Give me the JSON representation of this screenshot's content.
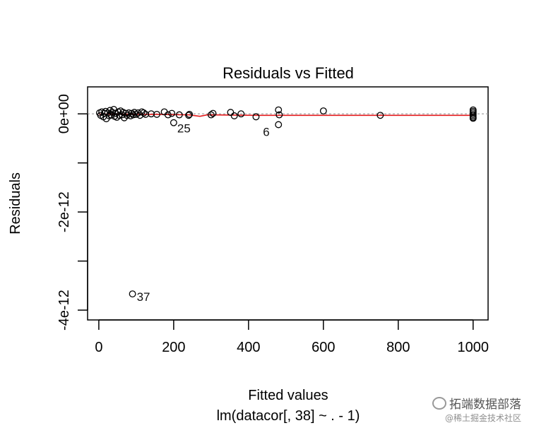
{
  "chart_data": {
    "type": "scatter",
    "title": "Residuals vs Fitted",
    "xlabel": "Fitted values",
    "sublabel": "lm(datacor[, 38] ~ . - 1)",
    "ylabel": "Residuals",
    "xlim": [
      -30,
      1040
    ],
    "ylim": [
      -4.2e-12,
      5.5e-13
    ],
    "x_ticks": [
      0,
      200,
      400,
      600,
      800,
      1000
    ],
    "x_tick_labels": [
      "0",
      "200",
      "400",
      "600",
      "800",
      "1000"
    ],
    "y_ticks": [
      0,
      -1e-12,
      -2e-12,
      -3e-12,
      -4e-12
    ],
    "y_tick_labels": [
      "0e+00",
      "",
      "-2e-12",
      "",
      "-4e-12"
    ],
    "points": [
      [
        2,
        2e-14
      ],
      [
        5,
        -3e-14
      ],
      [
        8,
        4e-14
      ],
      [
        12,
        -6e-14
      ],
      [
        15,
        1e-14
      ],
      [
        18,
        5e-14
      ],
      [
        20,
        -1e-13
      ],
      [
        24,
        2e-14
      ],
      [
        28,
        -4e-14
      ],
      [
        30,
        7e-14
      ],
      [
        33,
        -2e-14
      ],
      [
        36,
        3e-14
      ],
      [
        40,
        9e-14
      ],
      [
        42,
        -5e-14
      ],
      [
        45,
        1e-14
      ],
      [
        48,
        -7e-14
      ],
      [
        52,
        4e-14
      ],
      [
        55,
        -3e-14
      ],
      [
        58,
        6e-14
      ],
      [
        62,
        -2e-14
      ],
      [
        65,
        3e-14
      ],
      [
        68,
        -8e-14
      ],
      [
        72,
        1e-14
      ],
      [
        75,
        -3e-14
      ],
      [
        80,
        2e-14
      ],
      [
        85,
        -4e-14
      ],
      [
        88,
        1e-14
      ],
      [
        92,
        -2e-14
      ],
      [
        95,
        3e-14
      ],
      [
        100,
        -1e-14
      ],
      [
        105,
        2e-14
      ],
      [
        110,
        -3e-14
      ],
      [
        115,
        4e-14
      ],
      [
        120,
        2e-14
      ],
      [
        125,
        -1e-14
      ],
      [
        140,
        0.0
      ],
      [
        155,
        -1e-14
      ],
      [
        175,
        4e-14
      ],
      [
        185,
        -2e-14
      ],
      [
        195,
        1e-14
      ],
      [
        200,
        -1.8e-13
      ],
      [
        215,
        -2e-14
      ],
      [
        240,
        -3e-14
      ],
      [
        242,
        -1e-14
      ],
      [
        300,
        -2e-14
      ],
      [
        305,
        1e-14
      ],
      [
        352,
        3e-14
      ],
      [
        362,
        -4e-14
      ],
      [
        380,
        0.0
      ],
      [
        420,
        -6e-14
      ],
      [
        480,
        8e-14
      ],
      [
        482,
        -2e-14
      ],
      [
        480,
        -2.2e-13
      ],
      [
        600,
        6e-14
      ],
      [
        752,
        -3e-14
      ],
      [
        1000,
        8e-14
      ],
      [
        1000,
        5e-14
      ],
      [
        1000,
        2e-14
      ],
      [
        1000,
        -1e-14
      ],
      [
        1000,
        -4e-14
      ],
      [
        1000,
        -7e-14
      ],
      [
        1000,
        -9e-14
      ],
      [
        90,
        -3.67e-12
      ]
    ],
    "smooth_line": [
      [
        0,
        -5e-15
      ],
      [
        150,
        -1e-14
      ],
      [
        240,
        -2e-14
      ],
      [
        270,
        -5e-14
      ],
      [
        290,
        -2e-14
      ],
      [
        420,
        -3e-14
      ],
      [
        600,
        -3e-14
      ],
      [
        800,
        -3e-14
      ],
      [
        1000,
        -3e-14
      ]
    ],
    "point_labels": [
      {
        "text": "25",
        "x": 200,
        "y": -1.8e-13
      },
      {
        "text": "6",
        "x": 480,
        "y": -2.2e-13
      },
      {
        "text": "37",
        "x": 90,
        "y": -3.67e-12
      }
    ],
    "reference_line": 0,
    "colors": {
      "points": "#000000",
      "smooth": "#e31a1c",
      "reference": "#999999"
    },
    "grid": false
  },
  "watermark": {
    "line1": "拓端数据部落",
    "line2": "@稀土掘金技术社区"
  }
}
